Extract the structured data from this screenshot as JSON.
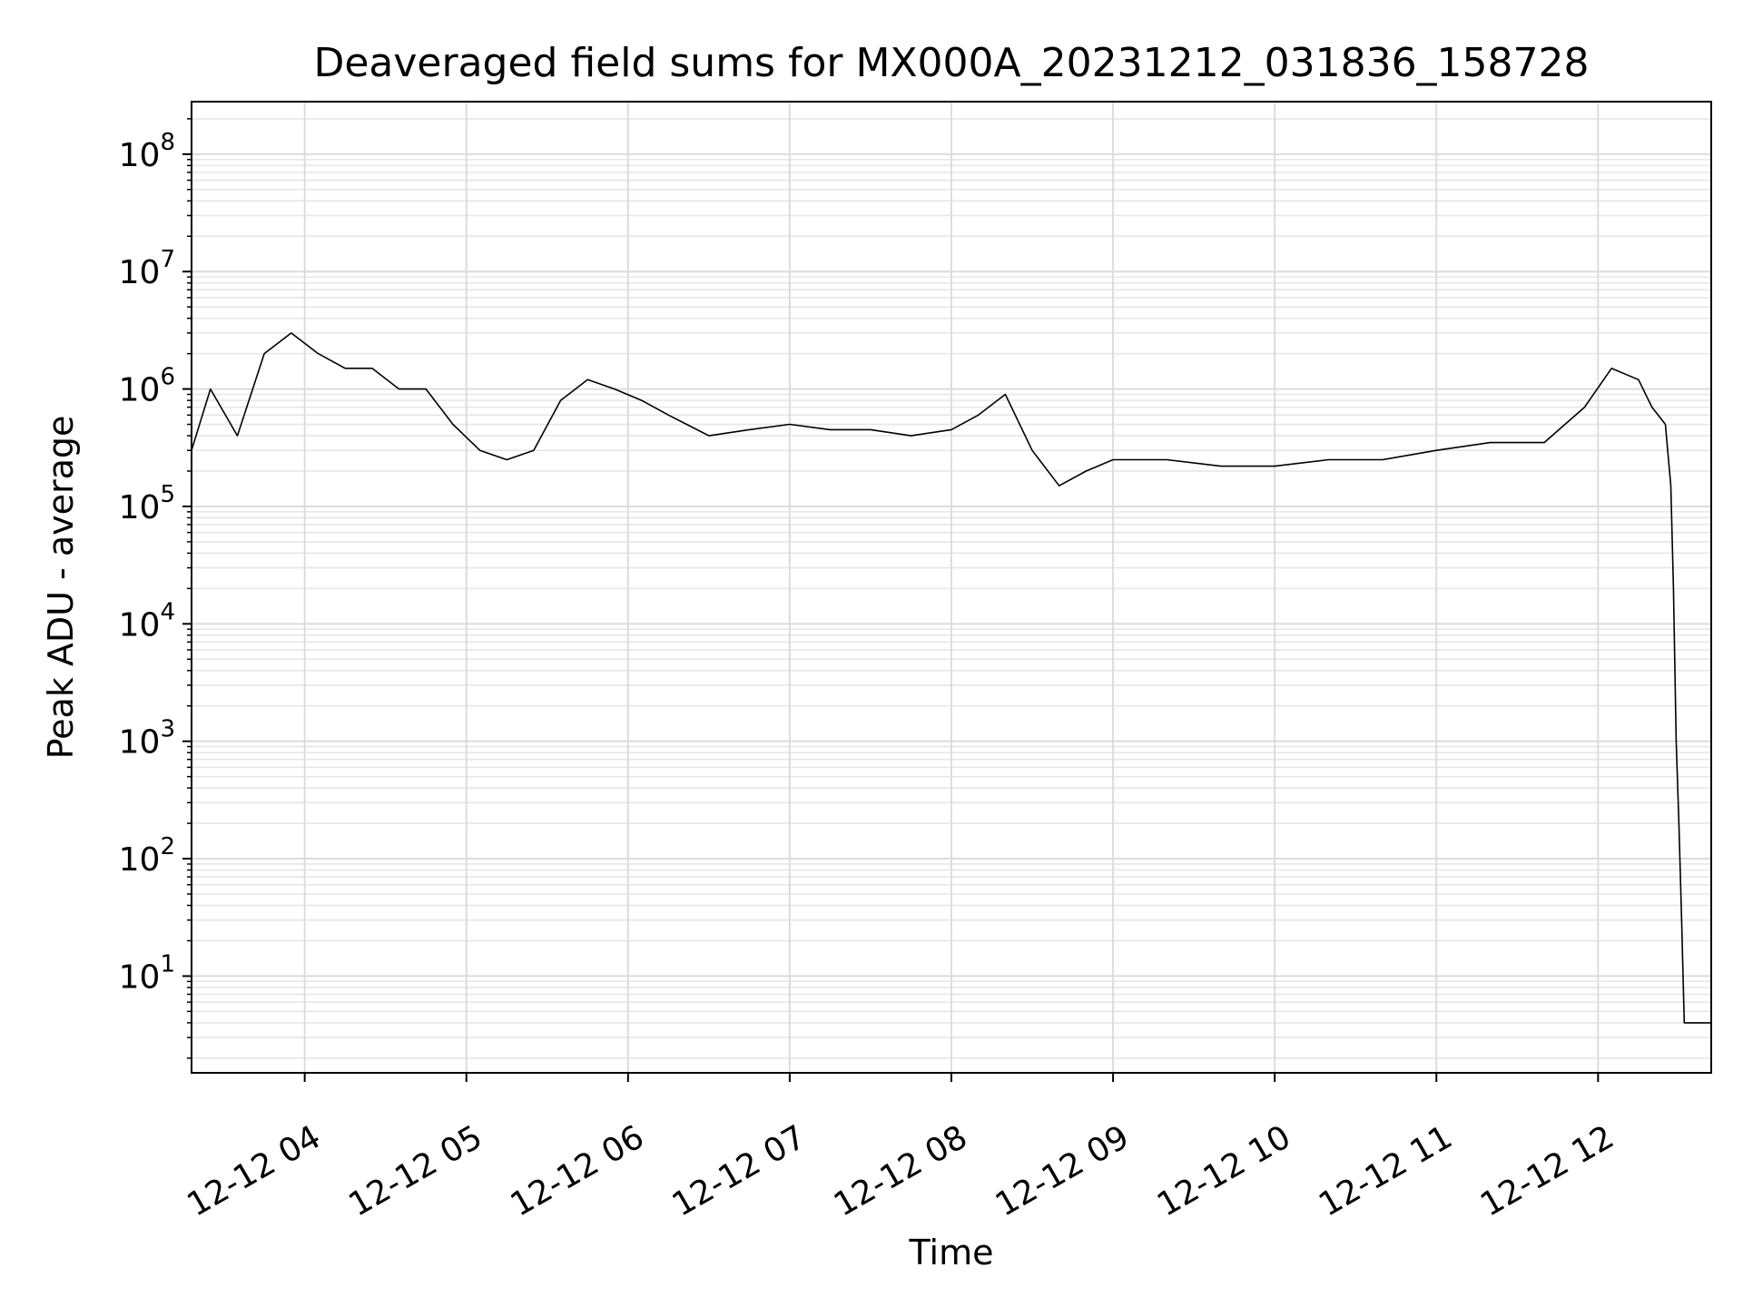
{
  "chart_data": {
    "type": "line",
    "title": "Deaveraged field sums for MX000A_20231212_031836_158728",
    "xlabel": "Time",
    "ylabel": "Peak ADU - average",
    "yscale": "log",
    "ylim": [
      1.5,
      280000000
    ],
    "xlim": [
      "2023-12-12 03:18",
      "2023-12-12 12:42"
    ],
    "grid": "major and minor, light gray",
    "line_color": "#000000",
    "x_ticks": [
      {
        "label": "12-12 04",
        "value": "2023-12-12 04:00"
      },
      {
        "label": "12-12 05",
        "value": "2023-12-12 05:00"
      },
      {
        "label": "12-12 06",
        "value": "2023-12-12 06:00"
      },
      {
        "label": "12-12 07",
        "value": "2023-12-12 07:00"
      },
      {
        "label": "12-12 08",
        "value": "2023-12-12 08:00"
      },
      {
        "label": "12-12 09",
        "value": "2023-12-12 09:00"
      },
      {
        "label": "12-12 10",
        "value": "2023-12-12 10:00"
      },
      {
        "label": "12-12 11",
        "value": "2023-12-12 11:00"
      },
      {
        "label": "12-12 12",
        "value": "2023-12-12 12:00"
      }
    ],
    "y_ticks": [
      {
        "base": "10",
        "exp": "1",
        "value": 10
      },
      {
        "base": "10",
        "exp": "2",
        "value": 100
      },
      {
        "base": "10",
        "exp": "3",
        "value": 1000
      },
      {
        "base": "10",
        "exp": "4",
        "value": 10000
      },
      {
        "base": "10",
        "exp": "5",
        "value": 100000
      },
      {
        "base": "10",
        "exp": "6",
        "value": 1000000
      },
      {
        "base": "10",
        "exp": "7",
        "value": 10000000
      },
      {
        "base": "10",
        "exp": "8",
        "value": 100000000
      }
    ],
    "series": [
      {
        "points": [
          [
            "2023-12-12 03:18",
            300000
          ],
          [
            "2023-12-12 03:25",
            1000000
          ],
          [
            "2023-12-12 03:35",
            400000
          ],
          [
            "2023-12-12 03:45",
            2000000
          ],
          [
            "2023-12-12 03:55",
            3000000
          ],
          [
            "2023-12-12 04:05",
            2000000
          ],
          [
            "2023-12-12 04:15",
            1500000
          ],
          [
            "2023-12-12 04:25",
            1500000
          ],
          [
            "2023-12-12 04:35",
            1000000
          ],
          [
            "2023-12-12 04:45",
            1000000
          ],
          [
            "2023-12-12 04:55",
            500000
          ],
          [
            "2023-12-12 05:05",
            300000
          ],
          [
            "2023-12-12 05:15",
            250000
          ],
          [
            "2023-12-12 05:25",
            300000
          ],
          [
            "2023-12-12 05:35",
            800000
          ],
          [
            "2023-12-12 05:45",
            1200000
          ],
          [
            "2023-12-12 05:55",
            1000000
          ],
          [
            "2023-12-12 06:05",
            800000
          ],
          [
            "2023-12-12 06:15",
            600000
          ],
          [
            "2023-12-12 06:30",
            400000
          ],
          [
            "2023-12-12 06:45",
            450000
          ],
          [
            "2023-12-12 07:00",
            500000
          ],
          [
            "2023-12-12 07:15",
            450000
          ],
          [
            "2023-12-12 07:30",
            450000
          ],
          [
            "2023-12-12 07:45",
            400000
          ],
          [
            "2023-12-12 08:00",
            450000
          ],
          [
            "2023-12-12 08:10",
            600000
          ],
          [
            "2023-12-12 08:20",
            900000
          ],
          [
            "2023-12-12 08:30",
            300000
          ],
          [
            "2023-12-12 08:40",
            150000
          ],
          [
            "2023-12-12 08:50",
            200000
          ],
          [
            "2023-12-12 09:00",
            250000
          ],
          [
            "2023-12-12 09:20",
            250000
          ],
          [
            "2023-12-12 09:40",
            220000
          ],
          [
            "2023-12-12 10:00",
            220000
          ],
          [
            "2023-12-12 10:20",
            250000
          ],
          [
            "2023-12-12 10:40",
            250000
          ],
          [
            "2023-12-12 11:00",
            300000
          ],
          [
            "2023-12-12 11:20",
            350000
          ],
          [
            "2023-12-12 11:40",
            350000
          ],
          [
            "2023-12-12 11:55",
            700000
          ],
          [
            "2023-12-12 12:05",
            1500000
          ],
          [
            "2023-12-12 12:15",
            1200000
          ],
          [
            "2023-12-12 12:20",
            700000
          ],
          [
            "2023-12-12 12:25",
            500000
          ],
          [
            "2023-12-12 12:27",
            150000
          ],
          [
            "2023-12-12 12:28",
            20000
          ],
          [
            "2023-12-12 12:29",
            1000
          ],
          [
            "2023-12-12 12:30",
            200
          ],
          [
            "2023-12-12 12:31",
            30
          ],
          [
            "2023-12-12 12:32",
            4
          ],
          [
            "2023-12-12 12:42",
            4
          ]
        ]
      }
    ]
  }
}
